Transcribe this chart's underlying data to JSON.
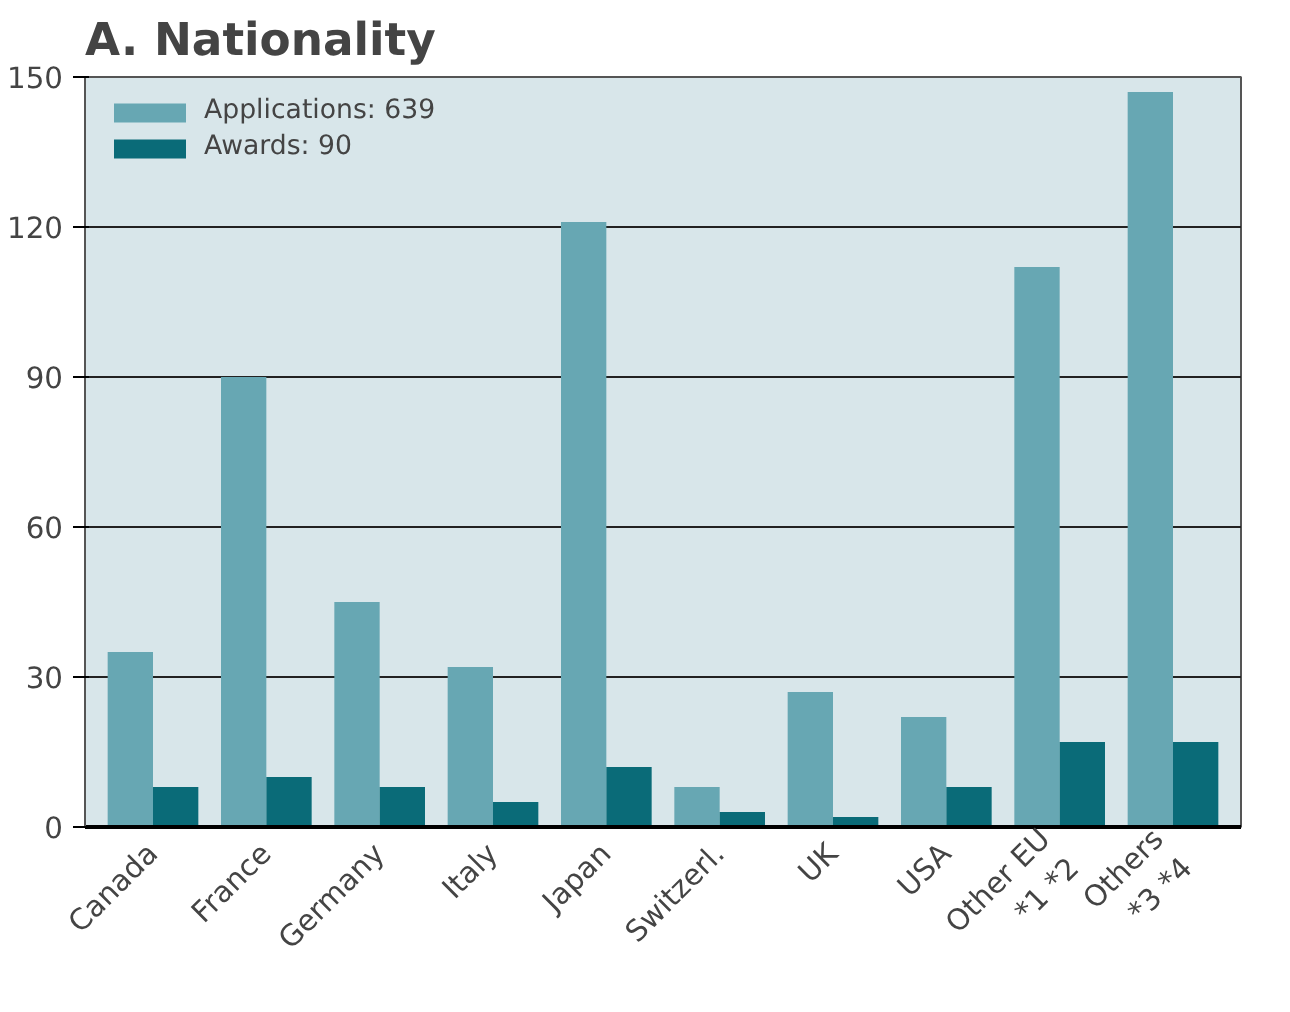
{
  "chart_data": {
    "type": "bar",
    "title": "A. Nationality",
    "categories": [
      "Canada",
      "France",
      "Germany",
      "Italy",
      "Japan",
      "Switzerl.",
      "UK",
      "USA",
      "Other EU\n*1 *2",
      "Others\n*3 *4"
    ],
    "series": [
      {
        "name": "Applications: 639",
        "color": "#67a7b3",
        "values": [
          35,
          90,
          45,
          32,
          121,
          8,
          27,
          22,
          112,
          147
        ]
      },
      {
        "name": "Awards: 90",
        "color": "#0a6b78",
        "values": [
          8,
          10,
          8,
          5,
          12,
          3,
          2,
          8,
          17,
          17
        ]
      }
    ],
    "ylim": [
      0,
      150
    ],
    "yticks": [
      0,
      30,
      60,
      90,
      120,
      150
    ],
    "grid": "y",
    "legend": "top left"
  }
}
